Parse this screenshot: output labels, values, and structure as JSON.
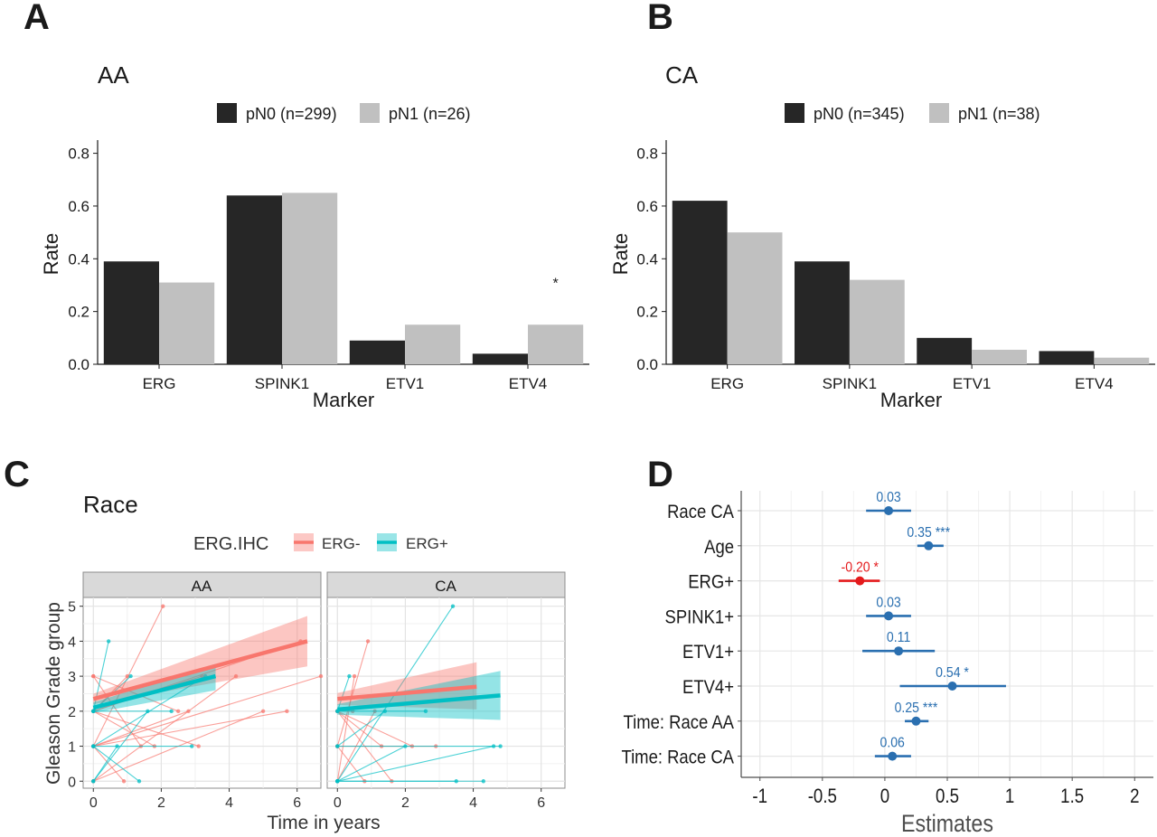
{
  "panel_letters": [
    "A",
    "B",
    "C",
    "D"
  ],
  "chart_data": [
    {
      "panel": "A",
      "type": "bar",
      "title": "AA",
      "xlabel": "Marker",
      "ylabel": "Rate",
      "categories": [
        "ERG",
        "SPINK1",
        "ETV1",
        "ETV4"
      ],
      "series": [
        {
          "name": "pN0 (n=299)",
          "color": "#262626",
          "values": [
            0.39,
            0.64,
            0.09,
            0.04
          ]
        },
        {
          "name": "pN1 (n=26)",
          "color": "#c0c0c0",
          "values": [
            0.31,
            0.65,
            0.15,
            0.15
          ]
        }
      ],
      "ylim": [
        0,
        0.85
      ],
      "yticks": [
        "0.0",
        "0.2",
        "0.4",
        "0.6",
        "0.8"
      ],
      "annotations": [
        {
          "category": "ETV4",
          "text": "*",
          "y": 0.31
        }
      ],
      "grid": false,
      "legend": "top"
    },
    {
      "panel": "B",
      "type": "bar",
      "title": "CA",
      "xlabel": "Marker",
      "ylabel": "Rate",
      "categories": [
        "ERG",
        "SPINK1",
        "ETV1",
        "ETV4"
      ],
      "series": [
        {
          "name": "pN0 (n=345)",
          "color": "#262626",
          "values": [
            0.62,
            0.39,
            0.1,
            0.05
          ]
        },
        {
          "name": "pN1 (n=38)",
          "color": "#c0c0c0",
          "values": [
            0.5,
            0.32,
            0.055,
            0.025
          ]
        }
      ],
      "ylim": [
        0,
        0.85
      ],
      "yticks": [
        "0.0",
        "0.2",
        "0.4",
        "0.6",
        "0.8"
      ],
      "grid": false,
      "legend": "top"
    },
    {
      "panel": "C",
      "type": "line",
      "title": "Race",
      "xlabel": "Time in years",
      "ylabel": "Gleason Grade group",
      "legend_title": "ERG.IHC",
      "facets": [
        "AA",
        "CA"
      ],
      "xlim": [
        -0.3,
        6.7
      ],
      "ylim": [
        -0.2,
        5.25
      ],
      "xticks": [
        0,
        2,
        4,
        6
      ],
      "yticks": [
        0,
        1,
        2,
        3,
        4,
        5
      ],
      "grid": true,
      "legend": "top",
      "series": [
        {
          "name": "ERG-",
          "color": "#f8766d"
        },
        {
          "name": "ERG+",
          "color": "#00bfc4"
        }
      ],
      "fits": [
        {
          "facet": "AA",
          "series": "ERG-",
          "x": [
            0,
            6.3
          ],
          "y": [
            2.35,
            4.0
          ],
          "lo": [
            2.2,
            3.28
          ],
          "hi": [
            2.5,
            4.72
          ]
        },
        {
          "facet": "AA",
          "series": "ERG+",
          "x": [
            0,
            3.6
          ],
          "y": [
            2.1,
            3.0
          ],
          "lo": [
            1.95,
            2.6
          ],
          "hi": [
            2.25,
            3.35
          ]
        },
        {
          "facet": "CA",
          "series": "ERG-",
          "x": [
            0,
            4.1
          ],
          "y": [
            2.35,
            2.7
          ],
          "lo": [
            2.18,
            2.05
          ],
          "hi": [
            2.52,
            3.4
          ]
        },
        {
          "facet": "CA",
          "series": "ERG+",
          "x": [
            0,
            4.8
          ],
          "y": [
            2.05,
            2.45
          ],
          "lo": [
            1.9,
            1.75
          ],
          "hi": [
            2.2,
            3.15
          ]
        }
      ],
      "trajectories": [
        {
          "facet": "AA",
          "series": "ERG-",
          "x": [
            0,
            2.05
          ],
          "y": [
            1,
            5
          ]
        },
        {
          "facet": "AA",
          "series": "ERG-",
          "x": [
            0,
            3.2
          ],
          "y": [
            2,
            3
          ]
        },
        {
          "facet": "AA",
          "series": "ERG-",
          "x": [
            0,
            1.8
          ],
          "y": [
            2,
            1
          ]
        },
        {
          "facet": "AA",
          "series": "ERG-",
          "x": [
            0,
            5.7
          ],
          "y": [
            1,
            2
          ]
        },
        {
          "facet": "AA",
          "series": "ERG-",
          "x": [
            0,
            6.1
          ],
          "y": [
            2,
            4
          ]
        },
        {
          "facet": "AA",
          "series": "ERG-",
          "x": [
            0,
            5.0
          ],
          "y": [
            0,
            2
          ]
        },
        {
          "facet": "AA",
          "series": "ERG-",
          "x": [
            0,
            6.7
          ],
          "y": [
            1,
            3
          ]
        },
        {
          "facet": "AA",
          "series": "ERG-",
          "x": [
            0,
            0.9
          ],
          "y": [
            1,
            0
          ]
        },
        {
          "facet": "AA",
          "series": "ERG-",
          "x": [
            0,
            3.1
          ],
          "y": [
            2,
            1
          ]
        },
        {
          "facet": "AA",
          "series": "ERG-",
          "x": [
            0,
            2.5
          ],
          "y": [
            3,
            2
          ]
        },
        {
          "facet": "AA",
          "series": "ERG-",
          "x": [
            0,
            1.4
          ],
          "y": [
            3,
            1
          ]
        },
        {
          "facet": "AA",
          "series": "ERG-",
          "x": [
            0,
            4.2
          ],
          "y": [
            0,
            3
          ]
        },
        {
          "facet": "AA",
          "series": "ERG-",
          "x": [
            0,
            1.0
          ],
          "y": [
            2,
            3
          ]
        },
        {
          "facet": "AA",
          "series": "ERG-",
          "x": [
            0,
            2.8
          ],
          "y": [
            1,
            2
          ]
        },
        {
          "facet": "AA",
          "series": "ERG+",
          "x": [
            0,
            0.45
          ],
          "y": [
            2,
            4
          ]
        },
        {
          "facet": "AA",
          "series": "ERG+",
          "x": [
            0,
            1.35
          ],
          "y": [
            1,
            0
          ]
        },
        {
          "facet": "AA",
          "series": "ERG+",
          "x": [
            0,
            3.3
          ],
          "y": [
            1,
            3
          ]
        },
        {
          "facet": "AA",
          "series": "ERG+",
          "x": [
            0,
            2.3
          ],
          "y": [
            2,
            2
          ]
        },
        {
          "facet": "AA",
          "series": "ERG+",
          "x": [
            0,
            1.6
          ],
          "y": [
            0,
            2
          ]
        },
        {
          "facet": "AA",
          "series": "ERG+",
          "x": [
            0,
            2.9
          ],
          "y": [
            1,
            1
          ]
        },
        {
          "facet": "AA",
          "series": "ERG+",
          "x": [
            0,
            1.1
          ],
          "y": [
            2,
            3
          ]
        },
        {
          "facet": "AA",
          "series": "ERG+",
          "x": [
            0,
            0.7
          ],
          "y": [
            0,
            1
          ]
        },
        {
          "facet": "CA",
          "series": "ERG-",
          "x": [
            0,
            0.9
          ],
          "y": [
            1,
            4
          ]
        },
        {
          "facet": "CA",
          "series": "ERG-",
          "x": [
            0,
            2.9
          ],
          "y": [
            1,
            1
          ]
        },
        {
          "facet": "CA",
          "series": "ERG-",
          "x": [
            0,
            0.5
          ],
          "y": [
            0,
            3
          ]
        },
        {
          "facet": "CA",
          "series": "ERG-",
          "x": [
            0,
            1.3
          ],
          "y": [
            2,
            1
          ]
        },
        {
          "facet": "CA",
          "series": "ERG-",
          "x": [
            0,
            1.6
          ],
          "y": [
            2,
            0
          ]
        },
        {
          "facet": "CA",
          "series": "ERG-",
          "x": [
            0,
            0.8
          ],
          "y": [
            1,
            0
          ]
        },
        {
          "facet": "CA",
          "series": "ERG-",
          "x": [
            0,
            2.2
          ],
          "y": [
            2,
            1
          ]
        },
        {
          "facet": "CA",
          "series": "ERG-",
          "x": [
            0,
            1.1
          ],
          "y": [
            0,
            2
          ]
        },
        {
          "facet": "CA",
          "series": "ERG-",
          "x": [
            0,
            0.45
          ],
          "y": [
            2,
            2
          ]
        },
        {
          "facet": "CA",
          "series": "ERG+",
          "x": [
            0,
            3.4
          ],
          "y": [
            0,
            5
          ]
        },
        {
          "facet": "CA",
          "series": "ERG+",
          "x": [
            0,
            4.6
          ],
          "y": [
            0,
            1
          ]
        },
        {
          "facet": "CA",
          "series": "ERG+",
          "x": [
            0,
            4.8
          ],
          "y": [
            1,
            1
          ]
        },
        {
          "facet": "CA",
          "series": "ERG+",
          "x": [
            0,
            4.3
          ],
          "y": [
            0,
            0
          ]
        },
        {
          "facet": "CA",
          "series": "ERG+",
          "x": [
            0,
            2.6
          ],
          "y": [
            2,
            2
          ]
        },
        {
          "facet": "CA",
          "series": "ERG+",
          "x": [
            0,
            1.4
          ],
          "y": [
            1,
            2
          ]
        },
        {
          "facet": "CA",
          "series": "ERG+",
          "x": [
            0,
            0.35
          ],
          "y": [
            2,
            3
          ]
        },
        {
          "facet": "CA",
          "series": "ERG+",
          "x": [
            0,
            2.0
          ],
          "y": [
            0,
            1
          ]
        },
        {
          "facet": "CA",
          "series": "ERG+",
          "x": [
            0,
            3.5
          ],
          "y": [
            0,
            0
          ]
        }
      ]
    },
    {
      "panel": "D",
      "type": "scatter",
      "xlabel": "Estimates",
      "ylabel": "",
      "xlim": [
        -1.15,
        2.15
      ],
      "xticks": [
        "-1",
        "-0.5",
        "0",
        "0.5",
        "1",
        "1.5",
        "2"
      ],
      "grid": true,
      "terms": [
        "Race CA",
        "Age",
        "ERG+",
        "SPINK1+",
        "ETV1+",
        "ETV4+",
        "Time: Race AA",
        "Time: Race CA"
      ],
      "estimates": [
        0.03,
        0.35,
        -0.2,
        0.03,
        0.11,
        0.54,
        0.25,
        0.06
      ],
      "ci_low": [
        -0.15,
        0.26,
        -0.37,
        -0.15,
        -0.18,
        0.12,
        0.16,
        -0.08
      ],
      "ci_high": [
        0.21,
        0.47,
        -0.04,
        0.21,
        0.4,
        0.97,
        0.35,
        0.21
      ],
      "labels": [
        "0.03",
        "0.35 ***",
        "-0.20 *",
        "0.03",
        "0.11",
        "0.54 *",
        "0.25 ***",
        "0.06"
      ],
      "colors": [
        "#2a6fb0",
        "#2a6fb0",
        "#e41a1c",
        "#2a6fb0",
        "#2a6fb0",
        "#2a6fb0",
        "#2a6fb0",
        "#2a6fb0"
      ]
    }
  ]
}
